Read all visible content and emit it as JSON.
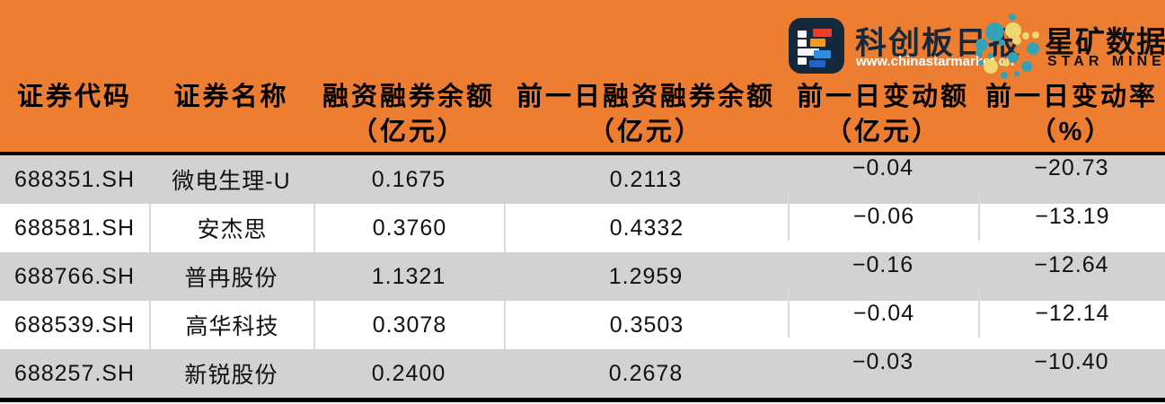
{
  "branding": {
    "kcb": {
      "title": "科创板日报",
      "url": "www.chinastarmarket.cn"
    },
    "starmine": {
      "title": "星矿数据",
      "subtitle": "STAR MINE"
    }
  },
  "colors": {
    "background_orange": "#ED7D31",
    "row_gray": "#D2D2D2",
    "row_white": "#FFFFFF",
    "cell_border": "#D9D9D9",
    "separator_black": "#000000",
    "logo_navy": "#16293B",
    "logo_teal": "#35A3B5",
    "logo_yellow": "#EFD96F"
  },
  "table": {
    "columns": [
      {
        "line1": "证券代码",
        "line2": ""
      },
      {
        "line1": "证券名称",
        "line2": ""
      },
      {
        "line1": "融资融券余额",
        "line2": "（亿元）"
      },
      {
        "line1": "前一日融资融券余额",
        "line2": "（亿元）"
      },
      {
        "line1": "前一日变动额",
        "line2": "（亿元）"
      },
      {
        "line1": "前一日变动率",
        "line2": "（%）"
      }
    ],
    "rows": [
      {
        "code": "688351.SH",
        "name": "微电生理-U",
        "balance": "0.1675",
        "prev_balance": "0.2113",
        "change": "−0.04",
        "change_pct": "−20.73"
      },
      {
        "code": "688581.SH",
        "name": "安杰思",
        "balance": "0.3760",
        "prev_balance": "0.4332",
        "change": "−0.06",
        "change_pct": "−13.19"
      },
      {
        "code": "688766.SH",
        "name": "普冉股份",
        "balance": "1.1321",
        "prev_balance": "1.2959",
        "change": "−0.16",
        "change_pct": "−12.64"
      },
      {
        "code": "688539.SH",
        "name": "高华科技",
        "balance": "0.3078",
        "prev_balance": "0.3503",
        "change": "−0.04",
        "change_pct": "−12.14"
      },
      {
        "code": "688257.SH",
        "name": "新锐股份",
        "balance": "0.2400",
        "prev_balance": "0.2678",
        "change": "−0.03",
        "change_pct": "−10.40"
      }
    ]
  },
  "chart_data": {
    "type": "table",
    "columns": [
      "证券代码",
      "证券名称",
      "融资融券余额（亿元）",
      "前一日融资融券余额（亿元）",
      "前一日变动额（亿元）",
      "前一日变动率（%）"
    ],
    "rows": [
      [
        "688351.SH",
        "微电生理-U",
        0.1675,
        0.2113,
        -0.04,
        -20.73
      ],
      [
        "688581.SH",
        "安杰思",
        0.376,
        0.4332,
        -0.06,
        -13.19
      ],
      [
        "688766.SH",
        "普冉股份",
        1.1321,
        1.2959,
        -0.16,
        -12.64
      ],
      [
        "688539.SH",
        "高华科技",
        0.3078,
        0.3503,
        -0.04,
        -12.14
      ],
      [
        "688257.SH",
        "新锐股份",
        0.24,
        0.2678,
        -0.03,
        -10.4
      ]
    ]
  }
}
